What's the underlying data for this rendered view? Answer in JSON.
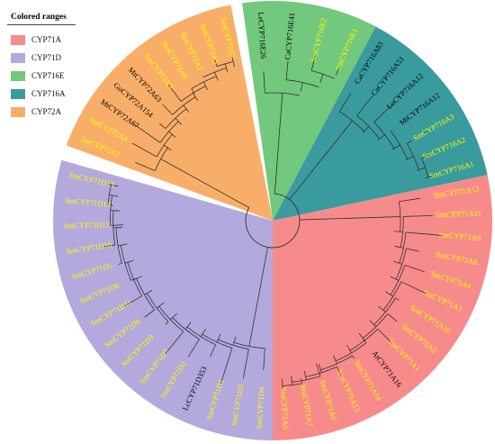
{
  "legend": {
    "title": "Colored ranges",
    "items": [
      {
        "label": "CYP71A",
        "color": "#f78b8b"
      },
      {
        "label": "CYP71D",
        "color": "#b4a9dc"
      },
      {
        "label": "CYP716E",
        "color": "#72c87c"
      },
      {
        "label": "CYP716A",
        "color": "#3a9b9e"
      },
      {
        "label": "CYP72A",
        "color": "#f8ae68"
      }
    ]
  },
  "tree": {
    "clades": [
      {
        "name": "CYP716E",
        "color": "#72c87c",
        "leaves": [
          {
            "label": "LeCYP716E26",
            "color": "#000000"
          },
          {
            "label": "CaCYP716E41",
            "color": "#000000"
          },
          {
            "label": "SmCYP716E2",
            "color": "#ffff00"
          },
          {
            "label": "SmCYP716E1",
            "color": "#ffff00"
          }
        ]
      },
      {
        "name": "CYP716A",
        "color": "#3a9b9e",
        "leaves": [
          {
            "label": "CaCYP716A83",
            "color": "#000000"
          },
          {
            "label": "CaCYP716A51",
            "color": "#000000"
          },
          {
            "label": "LcCYP716A12",
            "color": "#000000"
          },
          {
            "label": "MtCYP716A12",
            "color": "#000000"
          },
          {
            "label": "SmCYP716A3",
            "color": "#ffff00"
          },
          {
            "label": "SmCYP716A2",
            "color": "#ffff00"
          },
          {
            "label": "SmCYP716A1",
            "color": "#ffff00"
          }
        ]
      },
      {
        "name": "CYP71A",
        "color": "#f78b8b",
        "leaves": [
          {
            "label": "SmCYP71A12",
            "color": "#ffff00"
          },
          {
            "label": "SmCYP71A11",
            "color": "#ffff00"
          },
          {
            "label": "SmCYP71A9",
            "color": "#ffff00"
          },
          {
            "label": "SmCYP71A8",
            "color": "#ffff00"
          },
          {
            "label": "SmCYP71A4",
            "color": "#ffff00"
          },
          {
            "label": "SmCYP71A3",
            "color": "#ffff00"
          },
          {
            "label": "SmCYP71A10",
            "color": "#ffff00"
          },
          {
            "label": "SmCYP71A2",
            "color": "#ffff00"
          },
          {
            "label": "SmCYP71A1",
            "color": "#ffff00"
          },
          {
            "label": "AtCYP71A16",
            "color": "#000000"
          },
          {
            "label": "SmCYP71A14",
            "color": "#ffff00"
          },
          {
            "label": "SmCYP71A13",
            "color": "#ffff00"
          },
          {
            "label": "SmCYP71A6",
            "color": "#ffff00"
          },
          {
            "label": "SmCYP71A7",
            "color": "#ffff00"
          },
          {
            "label": "SmCYP71A5",
            "color": "#ffff00"
          }
        ]
      },
      {
        "name": "CYP71D",
        "color": "#b4a9dc",
        "leaves": [
          {
            "label": "SmCYP71D4",
            "color": "#ffff00"
          },
          {
            "label": "SmCYP71D3",
            "color": "#ffff00"
          },
          {
            "label": "SmCYP71D1",
            "color": "#ffff00"
          },
          {
            "label": "LcCYP71D353",
            "color": "#000000"
          },
          {
            "label": "SmCYP71D2",
            "color": "#ffff00"
          },
          {
            "label": "SmCYP71D7",
            "color": "#ffff00"
          },
          {
            "label": "SmCYP71D9",
            "color": "#ffff00"
          },
          {
            "label": "SmCYP71D8",
            "color": "#ffff00"
          },
          {
            "label": "SmCYP71D11",
            "color": "#ffff00"
          },
          {
            "label": "SmCYP71D6",
            "color": "#ffff00"
          },
          {
            "label": "SmCYP71D5",
            "color": "#ffff00"
          },
          {
            "label": "SmCYP71D10",
            "color": "#ffff00"
          },
          {
            "label": "SmCYP71D12",
            "color": "#ffff00"
          },
          {
            "label": "SmCYP71D14",
            "color": "#ffff00"
          },
          {
            "label": "SmCYP71D13",
            "color": "#ffff00"
          }
        ]
      },
      {
        "name": "CYP72A",
        "color": "#f8ae68",
        "leaves": [
          {
            "label": "SmCYP72A2",
            "color": "#ffff00"
          },
          {
            "label": "SmCYP72A4",
            "color": "#ffff00"
          },
          {
            "label": "MtCYP72A67",
            "color": "#000000"
          },
          {
            "label": "GuCYP72A154",
            "color": "#000000"
          },
          {
            "label": "MtCYP72A63",
            "color": "#000000"
          },
          {
            "label": "SmCYP72A3",
            "color": "#ffff00"
          },
          {
            "label": "SmCYP72A6",
            "color": "#ffff00"
          },
          {
            "label": "SmCYP72A1",
            "color": "#ffff00"
          },
          {
            "label": "SmCYP72A5",
            "color": "#ffff00"
          },
          {
            "label": "SmCYP72A7",
            "color": "#ffff00"
          }
        ]
      }
    ]
  }
}
